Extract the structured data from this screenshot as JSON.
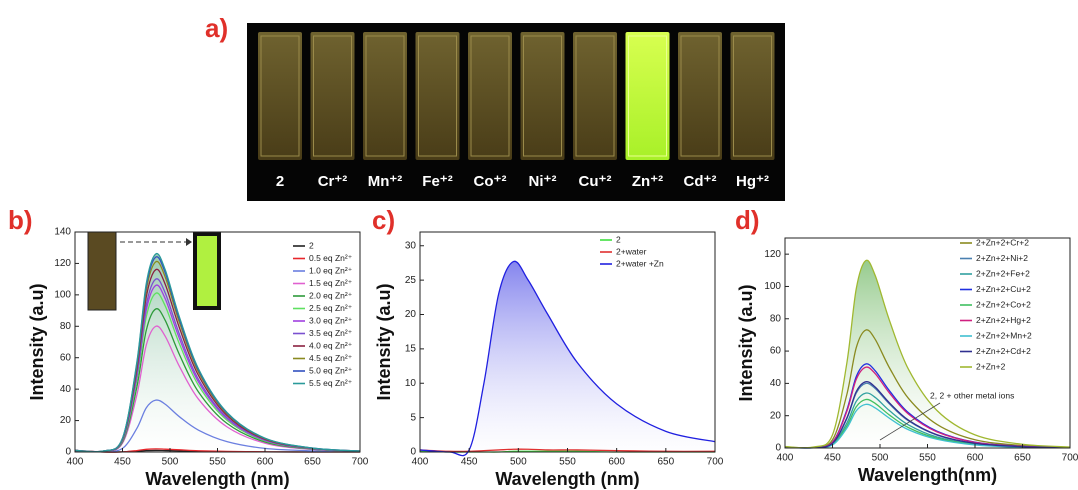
{
  "photo": {
    "label": "a)",
    "cuvettes": [
      "2",
      "Cr⁺²",
      "Mn⁺²",
      "Fe⁺²",
      "Co⁺²",
      "Ni⁺²",
      "Cu⁺²",
      "Zn⁺²",
      "Cd⁺²",
      "Hg⁺²"
    ]
  },
  "chart_data": [
    {
      "type": "line",
      "label": "b)",
      "xlabel": "Wavelength (nm)",
      "ylabel": "Intensity (a.u)",
      "xlim": [
        400,
        700
      ],
      "xticks": [
        400,
        450,
        500,
        550,
        600,
        650,
        700
      ],
      "ylim": [
        0,
        140
      ],
      "yticks": [
        0,
        20,
        40,
        60,
        80,
        100,
        120,
        140
      ],
      "x": [
        400,
        430,
        450,
        465,
        475,
        485,
        495,
        510,
        530,
        560,
        600,
        650,
        700
      ],
      "series": [
        {
          "name": "2",
          "color": "#222222",
          "values": [
            1,
            0,
            0.1,
            0.5,
            0.9,
            1,
            0.9,
            0.7,
            0.4,
            0.2,
            0.1,
            0,
            0
          ]
        },
        {
          "name": "0.5 eq Zn²⁺",
          "color": "#e8262b",
          "values": [
            1,
            0,
            0.1,
            0.9,
            1.7,
            2,
            1.8,
            1.4,
            0.8,
            0.4,
            0.1,
            0,
            0
          ]
        },
        {
          "name": "1.0 eq Zn²⁺",
          "color": "#6b7fe0",
          "values": [
            1,
            0.2,
            2.3,
            14.9,
            28.1,
            33,
            30.4,
            22.4,
            13.9,
            6.6,
            2.3,
            0.7,
            0.2
          ]
        },
        {
          "name": "1.5 eq Zn²⁺",
          "color": "#e060d0",
          "values": [
            1,
            0.4,
            5.6,
            36,
            68,
            80,
            73.6,
            54.4,
            33.6,
            16,
            5.6,
            1.6,
            0.4
          ]
        },
        {
          "name": "2.0 eq Zn²⁺",
          "color": "#2e9a3a",
          "values": [
            1,
            0.5,
            6.4,
            41,
            77.4,
            91,
            83.7,
            61.9,
            38.2,
            18.2,
            6.4,
            1.8,
            0.5
          ]
        },
        {
          "name": "2.5 eq Zn²⁺",
          "color": "#5fe060",
          "values": [
            1,
            0.5,
            7.1,
            45.5,
            85.9,
            101,
            92.9,
            68.7,
            42.4,
            20.2,
            7.1,
            2,
            0.5
          ]
        },
        {
          "name": "3.0 eq Zn²⁺",
          "color": "#a040e0",
          "values": [
            1,
            0.5,
            7.4,
            47.7,
            90.1,
            106,
            97.5,
            72.1,
            44.5,
            21.2,
            7.4,
            2.1,
            0.5
          ]
        },
        {
          "name": "3.5 eq Zn²⁺",
          "color": "#7a50d0",
          "values": [
            1,
            0.6,
            7.7,
            49.5,
            93.5,
            110,
            101.2,
            74.8,
            46.2,
            22,
            7.7,
            2.2,
            0.6
          ]
        },
        {
          "name": "4.0 eq Zn²⁺",
          "color": "#8a2040",
          "values": [
            1,
            0.6,
            8.1,
            52.2,
            98.6,
            116,
            106.7,
            78.9,
            48.7,
            23.2,
            8.1,
            2.3,
            0.6
          ]
        },
        {
          "name": "4.5 eq Zn²⁺",
          "color": "#8a8a20",
          "values": [
            1,
            0.6,
            8.5,
            54.5,
            102.9,
            121,
            111.3,
            82.3,
            50.8,
            24.2,
            8.5,
            2.4,
            0.6
          ]
        },
        {
          "name": "5.0 eq Zn²⁺",
          "color": "#3050c0",
          "values": [
            1,
            0.6,
            8.7,
            55.8,
            105.4,
            124,
            114.1,
            84.3,
            52.1,
            24.8,
            8.7,
            2.5,
            0.6
          ]
        },
        {
          "name": "5.5 eq Zn²⁺",
          "color": "#2a9a9a",
          "values": [
            1,
            0.6,
            8.8,
            56.7,
            107.1,
            126,
            115.9,
            85.7,
            52.9,
            25.2,
            8.8,
            2.5,
            0.6
          ]
        }
      ]
    },
    {
      "type": "line",
      "label": "c)",
      "xlabel": "Wavelength (nm)",
      "ylabel": "Intensity (a.u)",
      "xlim": [
        400,
        700
      ],
      "xticks": [
        400,
        450,
        500,
        550,
        600,
        650,
        700
      ],
      "ylim": [
        0,
        32
      ],
      "yticks": [
        0,
        5,
        10,
        15,
        20,
        25,
        30
      ],
      "x": [
        400,
        430,
        450,
        465,
        480,
        495,
        510,
        530,
        560,
        600,
        650,
        700
      ],
      "series": [
        {
          "name": "2",
          "color": "#40e040",
          "values": [
            0.1,
            0,
            0,
            0,
            0,
            0.1,
            0.1,
            0.1,
            0.1,
            0,
            0,
            0
          ]
        },
        {
          "name": "2+water",
          "color": "#e03030",
          "values": [
            0.3,
            0.1,
            0.1,
            0.2,
            0.3,
            0.4,
            0.4,
            0.3,
            0.3,
            0.2,
            0.1,
            0.1
          ]
        },
        {
          "name": "2+water +Zn",
          "color": "#2020e0",
          "values": [
            0.3,
            0,
            0.3,
            10,
            23,
            27.7,
            25,
            20,
            13,
            7,
            3,
            1.5
          ]
        }
      ]
    },
    {
      "type": "line",
      "label": "d)",
      "xlabel": "Wavelength(nm)",
      "ylabel": "Intensity (a.u)",
      "annotation": "2, 2 + other metal ions",
      "xlim": [
        400,
        700
      ],
      "xticks": [
        400,
        450,
        500,
        550,
        600,
        650,
        700
      ],
      "ylim": [
        0,
        130
      ],
      "yticks": [
        0,
        20,
        40,
        60,
        80,
        100,
        120
      ],
      "x": [
        400,
        430,
        450,
        465,
        475,
        485,
        495,
        510,
        530,
        560,
        600,
        650,
        700
      ],
      "series": [
        {
          "name": "2+Zn+2+Cr+2",
          "color": "#8a8a20",
          "values": [
            0.6,
            0.4,
            5.1,
            32.9,
            62.1,
            73,
            67.2,
            49.6,
            30.7,
            14.6,
            5.1,
            1.5,
            0.4
          ]
        },
        {
          "name": "2+Zn+2+Ni+2",
          "color": "#4a80b0",
          "values": [
            0.3,
            0.2,
            2.8,
            18,
            34,
            40,
            36.8,
            27.2,
            16.8,
            8,
            2.8,
            0.8,
            0.2
          ]
        },
        {
          "name": "2+Zn+2+Fe+2",
          "color": "#30a0a0",
          "values": [
            0.3,
            0.2,
            2.4,
            15.3,
            28.9,
            34,
            31.3,
            23.1,
            14.3,
            6.8,
            2.4,
            0.7,
            0.2
          ]
        },
        {
          "name": "2+Zn+2+Cu+2",
          "color": "#2030e0",
          "values": [
            0.4,
            0.3,
            3.6,
            23.4,
            44.2,
            52,
            47.8,
            35.4,
            21.8,
            10.4,
            3.6,
            1,
            0.3
          ]
        },
        {
          "name": "2+Zn+2+Co+2",
          "color": "#40c060",
          "values": [
            0.2,
            0.2,
            2.1,
            13.5,
            25.5,
            30,
            27.6,
            20.4,
            12.6,
            6,
            2.1,
            0.6,
            0.2
          ]
        },
        {
          "name": "2+Zn+2+Hg+2",
          "color": "#d02080",
          "values": [
            0.4,
            0.3,
            3.5,
            22.5,
            42.5,
            50,
            46,
            34,
            21,
            10,
            3.5,
            1,
            0.3
          ]
        },
        {
          "name": "2+Zn+2+Mn+2",
          "color": "#40c0d0",
          "values": [
            0.2,
            0.1,
            1.9,
            12.2,
            23,
            27,
            24.8,
            18.4,
            11.3,
            5.4,
            1.9,
            0.5,
            0.1
          ]
        },
        {
          "name": "2+Zn+2+Cd+2",
          "color": "#303090",
          "values": [
            0.3,
            0.2,
            2.9,
            18.5,
            34.9,
            41,
            37.7,
            27.9,
            17.2,
            8.2,
            2.9,
            0.8,
            0.2
          ]
        },
        {
          "name": "2+Zn+2",
          "color": "#a0b830",
          "values": [
            0.9,
            0.6,
            8.1,
            52.2,
            98.6,
            116,
            106.7,
            78.9,
            48.7,
            23.2,
            8.1,
            2.3,
            0.6
          ]
        }
      ]
    }
  ]
}
